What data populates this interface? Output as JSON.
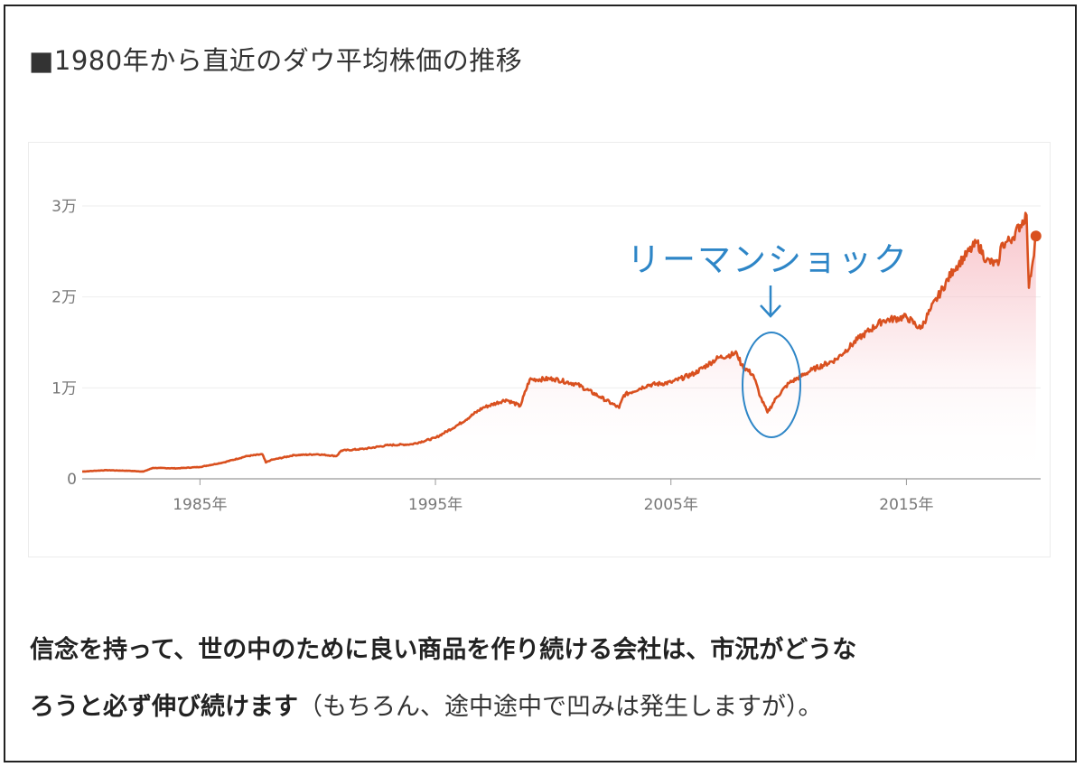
{
  "page": {
    "title": "■1980年から直近のダウ平均株価の推移"
  },
  "annotation": {
    "label": "リーマンショック",
    "arrow": "↓",
    "color": "#2E86C7"
  },
  "body_text": {
    "bold_line1": "信念を持って、世の中のために良い商品を作り続ける会社は、市況がどうな",
    "bold_line2": "ろうと必ず伸び続けます",
    "normal_line2": "（もちろん、途中途中で凹みは発生しますが）。"
  },
  "colors": {
    "line": "#D9501F",
    "fill_top": "#F7BFC6",
    "annotation": "#2E86C7",
    "grid": "#eeeeee",
    "axis": "#999999"
  },
  "chart_data": {
    "type": "area",
    "title": "",
    "xlabel": "",
    "ylabel": "",
    "xlim": [
      1980,
      2020.7
    ],
    "ylim": [
      0,
      30000
    ],
    "y_ticks": [
      {
        "value": 0,
        "label": "0"
      },
      {
        "value": 10000,
        "label": "1万"
      },
      {
        "value": 20000,
        "label": "2万"
      },
      {
        "value": 30000,
        "label": "3万"
      }
    ],
    "x_ticks": [
      {
        "value": 1985,
        "label": "1985年"
      },
      {
        "value": 1995,
        "label": "1995年"
      },
      {
        "value": 2005,
        "label": "2005年"
      },
      {
        "value": 2015,
        "label": "2015年"
      }
    ],
    "grid": true,
    "series": [
      {
        "name": "",
        "x": [
          1980,
          1981,
          1982,
          1982.6,
          1983,
          1984,
          1985,
          1986,
          1987,
          1987.65,
          1987.8,
          1988,
          1989,
          1990,
          1990.8,
          1991,
          1992,
          1993,
          1994,
          1995,
          1996,
          1997,
          1998,
          1998.6,
          1999,
          2000,
          2001,
          2002,
          2002.8,
          2003,
          2004,
          2005,
          2006,
          2007,
          2007.8,
          2008,
          2008.5,
          2008.8,
          2009.1,
          2009.5,
          2010,
          2011,
          2012,
          2013,
          2014,
          2015,
          2015.6,
          2016,
          2017,
          2018,
          2018.4,
          2018.9,
          2019,
          2019.5,
          2020.1,
          2020.2,
          2020.5
        ],
        "y": [
          800,
          950,
          880,
          800,
          1200,
          1150,
          1300,
          1800,
          2500,
          2700,
          1800,
          2050,
          2600,
          2700,
          2500,
          3100,
          3300,
          3700,
          3800,
          4500,
          6000,
          7800,
          8700,
          8000,
          10900,
          11000,
          10400,
          9000,
          7800,
          9200,
          10300,
          10600,
          11600,
          13300,
          13800,
          12500,
          11400,
          9000,
          7300,
          9000,
          10500,
          12000,
          13100,
          15500,
          17400,
          17800,
          16500,
          18500,
          23000,
          26000,
          24000,
          23500,
          25500,
          26500,
          29000,
          21000,
          26700
        ]
      }
    ],
    "annotation": {
      "text": "リーマンショック",
      "target_x": 2008.9,
      "target_y": 9000
    }
  }
}
